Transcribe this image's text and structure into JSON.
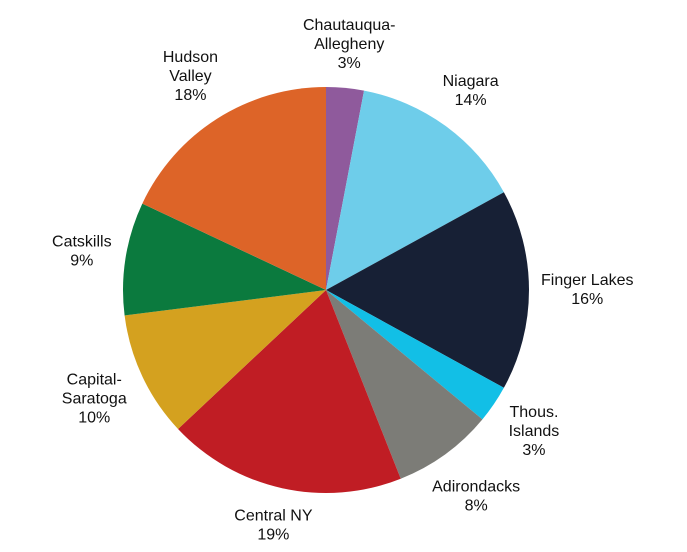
{
  "chart_data": {
    "type": "pie",
    "categories": [
      [
        "Chautauqua-",
        "Allegheny"
      ],
      [
        "Niagara"
      ],
      [
        "Finger Lakes"
      ],
      [
        "Thous.",
        "Islands"
      ],
      [
        "Adirondacks"
      ],
      [
        "Central NY"
      ],
      [
        "Capital-",
        "Saratoga"
      ],
      [
        "Catskills"
      ],
      [
        "Hudson",
        "Valley"
      ]
    ],
    "values": [
      3,
      14,
      16,
      3,
      8,
      19,
      10,
      9,
      18
    ],
    "value_labels": [
      "3%",
      "14%",
      "16%",
      "3%",
      "8%",
      "19%",
      "10%",
      "9%",
      "18%"
    ],
    "colors": [
      "#8f5a9c",
      "#6ecdea",
      "#172035",
      "#12bfe6",
      "#7c7c77",
      "#c01d24",
      "#d4a11f",
      "#0b7a3e",
      "#dd6428"
    ]
  }
}
